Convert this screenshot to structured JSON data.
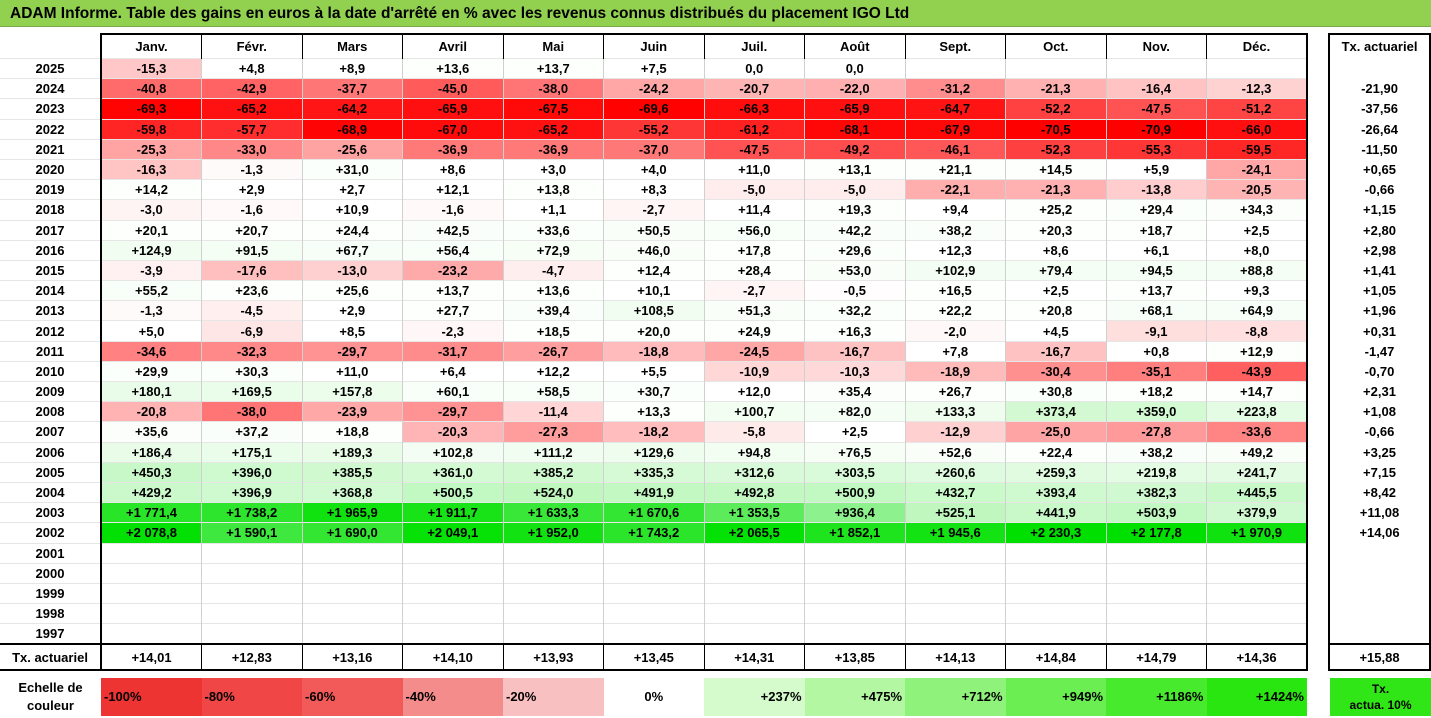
{
  "title": "ADAM Informe. Table des gains en euros à la date d'arrêté en % avec les revenus connus distribués du placement IGO Ltd",
  "months": [
    "Janv.",
    "Févr.",
    "Mars",
    "Avril",
    "Mai",
    "Juin",
    "Juil.",
    "Août",
    "Sept.",
    "Oct.",
    "Nov.",
    "Déc."
  ],
  "actuarial_header": "Tx. actuariel",
  "rows": [
    {
      "year": "2025",
      "values": [
        "-15,3",
        "+4,8",
        "+8,9",
        "+13,6",
        "+13,7",
        "+7,5",
        "0,0",
        "0,0",
        "",
        "",
        "",
        ""
      ],
      "rate": ""
    },
    {
      "year": "2024",
      "values": [
        "-40,8",
        "-42,9",
        "-37,7",
        "-45,0",
        "-38,0",
        "-24,2",
        "-20,7",
        "-22,0",
        "-31,2",
        "-21,3",
        "-16,4",
        "-12,3"
      ],
      "rate": "-21,90"
    },
    {
      "year": "2023",
      "values": [
        "-69,3",
        "-65,2",
        "-64,2",
        "-65,9",
        "-67,5",
        "-69,6",
        "-66,3",
        "-65,9",
        "-64,7",
        "-52,2",
        "-47,5",
        "-51,2"
      ],
      "rate": "-37,56"
    },
    {
      "year": "2022",
      "values": [
        "-59,8",
        "-57,7",
        "-68,9",
        "-67,0",
        "-65,2",
        "-55,2",
        "-61,2",
        "-68,1",
        "-67,9",
        "-70,5",
        "-70,9",
        "-66,0"
      ],
      "rate": "-26,64"
    },
    {
      "year": "2021",
      "values": [
        "-25,3",
        "-33,0",
        "-25,6",
        "-36,9",
        "-36,9",
        "-37,0",
        "-47,5",
        "-49,2",
        "-46,1",
        "-52,3",
        "-55,3",
        "-59,5"
      ],
      "rate": "-11,50"
    },
    {
      "year": "2020",
      "values": [
        "-16,3",
        "-1,3",
        "+31,0",
        "+8,6",
        "+3,0",
        "+4,0",
        "+11,0",
        "+13,1",
        "+21,1",
        "+14,5",
        "+5,9",
        "-24,1"
      ],
      "rate": "+0,65"
    },
    {
      "year": "2019",
      "values": [
        "+14,2",
        "+2,9",
        "+2,7",
        "+12,1",
        "+13,8",
        "+8,3",
        "-5,0",
        "-5,0",
        "-22,1",
        "-21,3",
        "-13,8",
        "-20,5"
      ],
      "rate": "-0,66"
    },
    {
      "year": "2018",
      "values": [
        "-3,0",
        "-1,6",
        "+10,9",
        "-1,6",
        "+1,1",
        "-2,7",
        "+11,4",
        "+19,3",
        "+9,4",
        "+25,2",
        "+29,4",
        "+34,3"
      ],
      "rate": "+1,15"
    },
    {
      "year": "2017",
      "values": [
        "+20,1",
        "+20,7",
        "+24,4",
        "+42,5",
        "+33,6",
        "+50,5",
        "+56,0",
        "+42,2",
        "+38,2",
        "+20,3",
        "+18,7",
        "+2,5"
      ],
      "rate": "+2,80"
    },
    {
      "year": "2016",
      "values": [
        "+124,9",
        "+91,5",
        "+67,7",
        "+56,4",
        "+72,9",
        "+46,0",
        "+17,8",
        "+29,6",
        "+12,3",
        "+8,6",
        "+6,1",
        "+8,0"
      ],
      "rate": "+2,98"
    },
    {
      "year": "2015",
      "values": [
        "-3,9",
        "-17,6",
        "-13,0",
        "-23,2",
        "-4,7",
        "+12,4",
        "+28,4",
        "+53,0",
        "+102,9",
        "+79,4",
        "+94,5",
        "+88,8"
      ],
      "rate": "+1,41"
    },
    {
      "year": "2014",
      "values": [
        "+55,2",
        "+23,6",
        "+25,6",
        "+13,7",
        "+13,6",
        "+10,1",
        "-2,7",
        "-0,5",
        "+16,5",
        "+2,5",
        "+13,7",
        "+9,3"
      ],
      "rate": "+1,05"
    },
    {
      "year": "2013",
      "values": [
        "-1,3",
        "-4,5",
        "+2,9",
        "+27,7",
        "+39,4",
        "+108,5",
        "+51,3",
        "+32,2",
        "+22,2",
        "+20,8",
        "+68,1",
        "+64,9"
      ],
      "rate": "+1,96"
    },
    {
      "year": "2012",
      "values": [
        "+5,0",
        "-6,9",
        "+8,5",
        "-2,3",
        "+18,5",
        "+20,0",
        "+24,9",
        "+16,3",
        "-2,0",
        "+4,5",
        "-9,1",
        "-8,8"
      ],
      "rate": "+0,31"
    },
    {
      "year": "2011",
      "values": [
        "-34,6",
        "-32,3",
        "-29,7",
        "-31,7",
        "-26,7",
        "-18,8",
        "-24,5",
        "-16,7",
        "+7,8",
        "-16,7",
        "+0,8",
        "+12,9"
      ],
      "rate": "-1,47"
    },
    {
      "year": "2010",
      "values": [
        "+29,9",
        "+30,3",
        "+11,0",
        "+6,4",
        "+12,2",
        "+5,5",
        "-10,9",
        "-10,3",
        "-18,9",
        "-30,4",
        "-35,1",
        "-43,9"
      ],
      "rate": "-0,70"
    },
    {
      "year": "2009",
      "values": [
        "+180,1",
        "+169,5",
        "+157,8",
        "+60,1",
        "+58,5",
        "+30,7",
        "+12,0",
        "+35,4",
        "+26,7",
        "+30,8",
        "+18,2",
        "+14,7"
      ],
      "rate": "+2,31"
    },
    {
      "year": "2008",
      "values": [
        "-20,8",
        "-38,0",
        "-23,9",
        "-29,7",
        "-11,4",
        "+13,3",
        "+100,7",
        "+82,0",
        "+133,3",
        "+373,4",
        "+359,0",
        "+223,8"
      ],
      "rate": "+1,08"
    },
    {
      "year": "2007",
      "values": [
        "+35,6",
        "+37,2",
        "+18,8",
        "-20,3",
        "-27,3",
        "-18,2",
        "-5,8",
        "+2,5",
        "-12,9",
        "-25,0",
        "-27,8",
        "-33,6"
      ],
      "rate": "-0,66"
    },
    {
      "year": "2006",
      "values": [
        "+186,4",
        "+175,1",
        "+189,3",
        "+102,8",
        "+111,2",
        "+129,6",
        "+94,8",
        "+76,5",
        "+52,6",
        "+22,4",
        "+38,2",
        "+49,2"
      ],
      "rate": "+3,25"
    },
    {
      "year": "2005",
      "values": [
        "+450,3",
        "+396,0",
        "+385,5",
        "+361,0",
        "+385,2",
        "+335,3",
        "+312,6",
        "+303,5",
        "+260,6",
        "+259,3",
        "+219,8",
        "+241,7"
      ],
      "rate": "+7,15"
    },
    {
      "year": "2004",
      "values": [
        "+429,2",
        "+396,9",
        "+368,8",
        "+500,5",
        "+524,0",
        "+491,9",
        "+492,8",
        "+500,9",
        "+432,7",
        "+393,4",
        "+382,3",
        "+445,5"
      ],
      "rate": "+8,42"
    },
    {
      "year": "2003",
      "values": [
        "+1 771,4",
        "+1 738,2",
        "+1 965,9",
        "+1 911,7",
        "+1 633,3",
        "+1 670,6",
        "+1 353,5",
        "+936,4",
        "+525,1",
        "+441,9",
        "+503,9",
        "+379,9"
      ],
      "rate": "+11,08"
    },
    {
      "year": "2002",
      "values": [
        "+2 078,8",
        "+1 590,1",
        "+1 690,0",
        "+2 049,1",
        "+1 952,0",
        "+1 743,2",
        "+2 065,5",
        "+1 852,1",
        "+1 945,6",
        "+2 230,3",
        "+2 177,8",
        "+1 970,9"
      ],
      "rate": "+14,06"
    },
    {
      "year": "2001",
      "values": [
        "",
        "",
        "",
        "",
        "",
        "",
        "",
        "",
        "",
        "",
        "",
        ""
      ],
      "rate": ""
    },
    {
      "year": "2000",
      "values": [
        "",
        "",
        "",
        "",
        "",
        "",
        "",
        "",
        "",
        "",
        "",
        ""
      ],
      "rate": ""
    },
    {
      "year": "1999",
      "values": [
        "",
        "",
        "",
        "",
        "",
        "",
        "",
        "",
        "",
        "",
        "",
        ""
      ],
      "rate": ""
    },
    {
      "year": "1998",
      "values": [
        "",
        "",
        "",
        "",
        "",
        "",
        "",
        "",
        "",
        "",
        "",
        ""
      ],
      "rate": ""
    },
    {
      "year": "1997",
      "values": [
        "",
        "",
        "",
        "",
        "",
        "",
        "",
        "",
        "",
        "",
        "",
        ""
      ],
      "rate": ""
    }
  ],
  "footer": {
    "label": "Tx. actuariel",
    "values": [
      "+14,01",
      "+12,83",
      "+13,16",
      "+14,10",
      "+13,93",
      "+13,45",
      "+14,31",
      "+13,85",
      "+14,13",
      "+14,84",
      "+14,79",
      "+14,36"
    ],
    "overall": "+15,88"
  },
  "scale": {
    "label_line1": "Echelle de",
    "label_line2": "couleur",
    "steps": [
      {
        "text": "-100%",
        "color": "#ee3333",
        "kind": "neg"
      },
      {
        "text": "-80%",
        "color": "#f04646",
        "kind": "neg"
      },
      {
        "text": "-60%",
        "color": "#f25a5a",
        "kind": "neg"
      },
      {
        "text": "-40%",
        "color": "#f48c8c",
        "kind": "neg"
      },
      {
        "text": "-20%",
        "color": "#f8c0c0",
        "kind": "neg"
      },
      {
        "text": "0%",
        "color": "#ffffff",
        "kind": "zero"
      },
      {
        "text": "+237%",
        "color": "#d5fbcc",
        "kind": "pos"
      },
      {
        "text": "+475%",
        "color": "#b3f7a3",
        "kind": "pos"
      },
      {
        "text": "+712%",
        "color": "#8ff27a",
        "kind": "pos"
      },
      {
        "text": "+949%",
        "color": "#6bee52",
        "kind": "pos"
      },
      {
        "text": "+1186%",
        "color": "#47ea2c",
        "kind": "pos"
      },
      {
        "text": "+1424%",
        "color": "#29e611",
        "kind": "pos"
      }
    ],
    "actuarial_line1": "Tx.",
    "actuarial_line2": "actua. 10%",
    "actuarial_color": "#31e616"
  }
}
